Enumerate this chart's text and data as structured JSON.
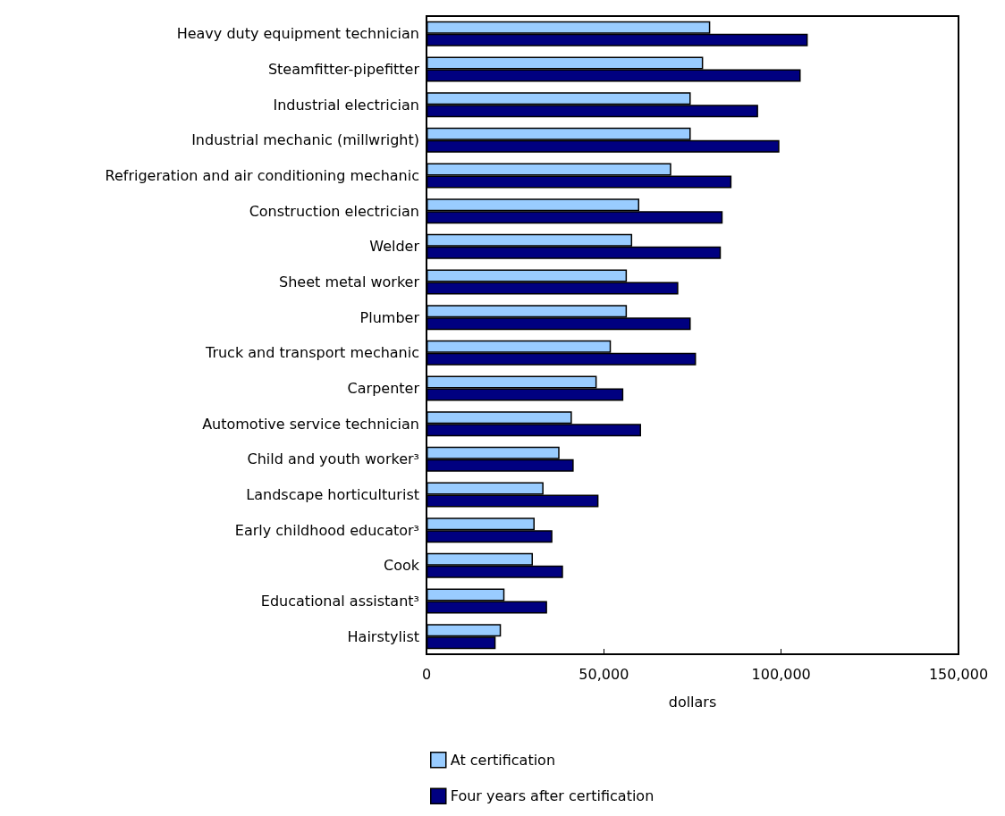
{
  "chart_data": {
    "type": "bar",
    "orientation": "horizontal",
    "xlabel": "dollars",
    "categories": [
      "Heavy duty equipment technician",
      "Steamfitter-pipefitter",
      "Industrial electrician",
      "Industrial mechanic (millwright)",
      "Refrigeration and air conditioning mechanic",
      "Construction electrician",
      "Welder",
      "Sheet metal worker",
      "Plumber",
      "Truck and transport mechanic",
      "Carpenter",
      "Automotive service technician",
      "Child and youth worker³",
      "Landscape horticulturist",
      "Early childhood educator³",
      "Cook",
      "Educational assistant³",
      "Hairstylist"
    ],
    "series": [
      {
        "name": "At certification",
        "color": "#99ccff",
        "values": [
          80000,
          78000,
          74500,
          74500,
          69000,
          60000,
          58000,
          56500,
          56500,
          52000,
          48000,
          41000,
          37500,
          33000,
          30500,
          30000,
          22000,
          21000
        ]
      },
      {
        "name": "Four years after certification",
        "color": "#000080",
        "values": [
          107500,
          105500,
          93500,
          99500,
          86000,
          83500,
          83000,
          71000,
          74500,
          76000,
          55500,
          60500,
          41500,
          48500,
          35500,
          38500,
          34000,
          19500
        ]
      }
    ],
    "xlim": [
      0,
      150000
    ],
    "xticks": [
      0,
      {
        "value": 50000,
        "label": "50,000"
      },
      {
        "value": 100000,
        "label": "100,000"
      },
      {
        "value": 150000,
        "label": "150,000"
      }
    ],
    "grid": false,
    "legend": "bottom left"
  }
}
